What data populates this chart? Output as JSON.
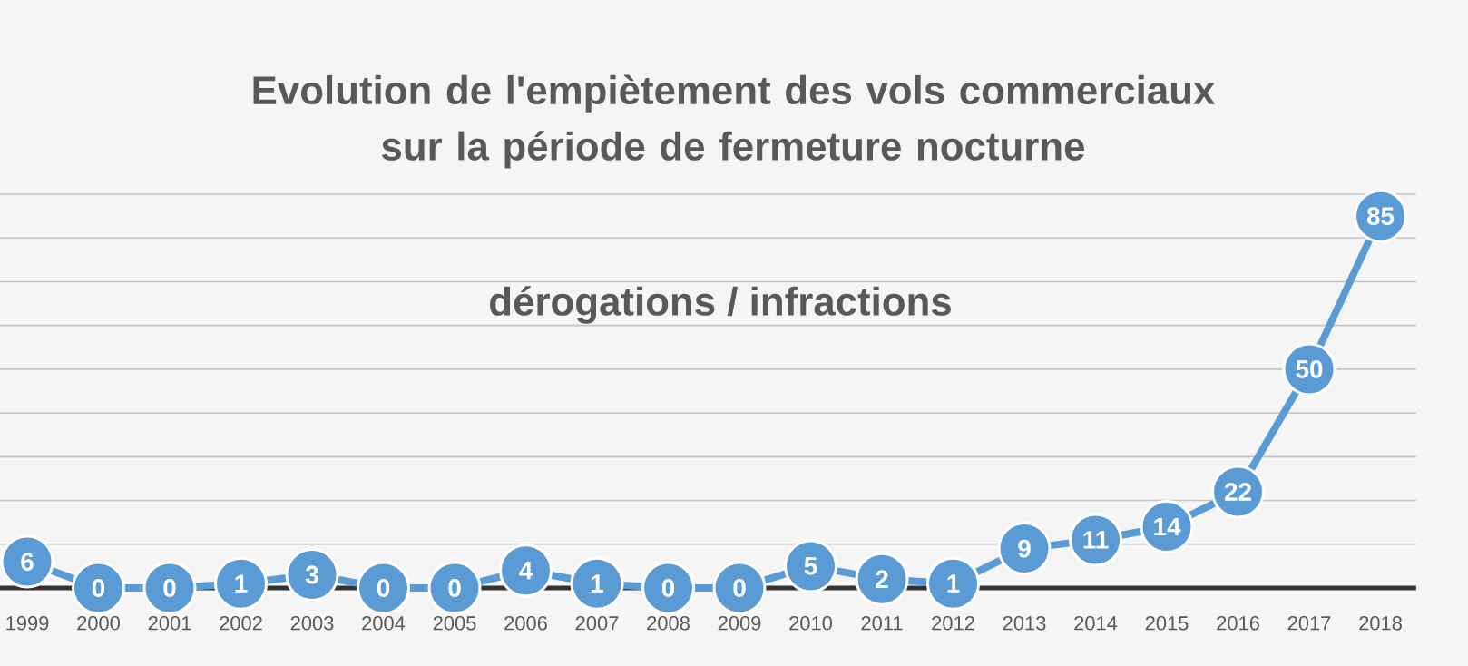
{
  "chart_data": {
    "type": "line",
    "title": "Evolution de l'empiètement des vols commerciaux sur la période de fermeture nocturne",
    "subtitle": "dérogations / infractions",
    "categories": [
      "1999",
      "2000",
      "2001",
      "2002",
      "2003",
      "2004",
      "2005",
      "2006",
      "2007",
      "2008",
      "2009",
      "2010",
      "2011",
      "2012",
      "2013",
      "2014",
      "2015",
      "2016",
      "2017",
      "2018"
    ],
    "values": [
      6,
      0,
      0,
      1,
      3,
      0,
      0,
      4,
      1,
      0,
      0,
      5,
      2,
      1,
      9,
      11,
      14,
      22,
      50,
      85
    ],
    "color": "#5b9bd5",
    "marker": "circle",
    "line_style": "solid",
    "data_labels": true,
    "grid": "y",
    "tick_labels": "x",
    "ylim": [
      0,
      90
    ],
    "yticks": [
      {
        "value": 0,
        "label": null
      },
      {
        "value": 10,
        "label": null
      },
      {
        "value": 20,
        "label": null
      },
      {
        "value": 30,
        "label": null
      },
      {
        "value": 40,
        "label": null
      },
      {
        "value": 50,
        "label": null
      },
      {
        "value": 60,
        "label": null
      },
      {
        "value": 70,
        "label": null
      },
      {
        "value": 80,
        "label": null
      },
      {
        "value": 90,
        "label": null
      }
    ]
  }
}
